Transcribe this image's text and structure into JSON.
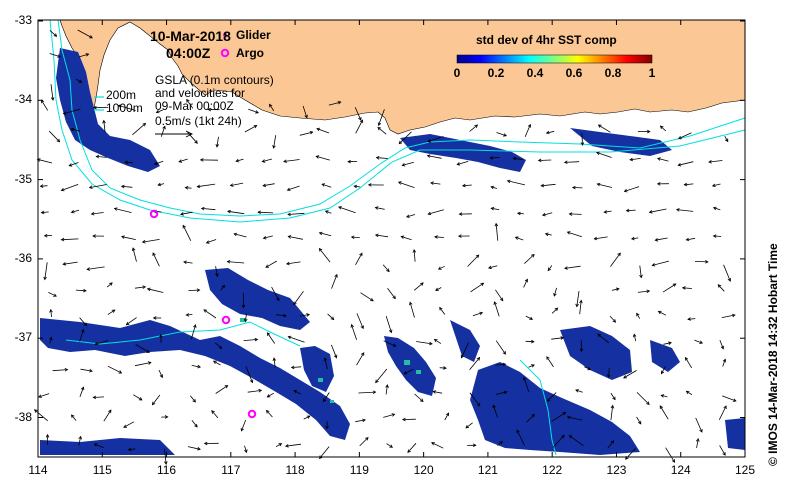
{
  "title": {
    "date": "10-Mar-2018",
    "time": "04:00Z"
  },
  "legend": {
    "glider_label": "Glider",
    "argo_label": "Argo",
    "glider_color": "#ff00ff",
    "argo_color": "#ff00ff"
  },
  "gsla_note": {
    "line1": "GSLA (0.1m contours)",
    "line2": "and velocities for",
    "line3": "09-Mar 00:00Z",
    "line4": "0.5m/s (1kt 24h)"
  },
  "isobaths": {
    "label_200": "200m",
    "label_1000": "1000m"
  },
  "colorbar": {
    "title": "std dev of 4hr SST comp",
    "ticks": [
      "0",
      "0.2",
      "0.4",
      "0.6",
      "0.8",
      "1"
    ]
  },
  "axes": {
    "lon_ticks": [
      "114",
      "115",
      "116",
      "117",
      "118",
      "119",
      "120",
      "121",
      "122",
      "123",
      "124",
      "125"
    ],
    "lat_ticks": [
      "-33",
      "-34",
      "-35",
      "-36",
      "-37",
      "-38"
    ]
  },
  "credit": "© IMOS 14-Mar-2018 14:32 Hobart Time",
  "colors": {
    "land": "#fbc794",
    "isobath": "#00e0e0",
    "ocean": "#ffffff",
    "sst_low": "#1530a0"
  }
}
